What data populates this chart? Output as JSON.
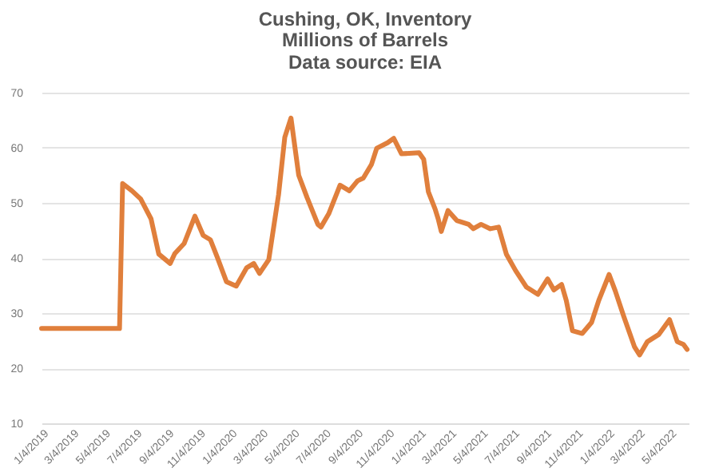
{
  "chart_data": {
    "type": "line",
    "title": "Cushing, OK, Inventory",
    "subtitle": "Millions of Barrels",
    "annotations": [
      "Data source: EIA"
    ],
    "x": [
      "2019-01-04",
      "2019-06-04",
      "2019-06-10",
      "2019-06-28",
      "2019-07-15",
      "2019-08-04",
      "2019-08-19",
      "2019-09-10",
      "2019-09-19",
      "2019-10-07",
      "2019-10-28",
      "2019-11-13",
      "2019-11-27",
      "2019-12-10",
      "2019-12-28",
      "2020-01-16",
      "2020-02-05",
      "2020-02-19",
      "2020-03-01",
      "2020-03-19",
      "2020-04-07",
      "2020-04-19",
      "2020-05-01",
      "2020-05-16",
      "2020-06-01",
      "2020-06-22",
      "2020-06-28",
      "2020-07-13",
      "2020-08-04",
      "2020-08-22",
      "2020-09-07",
      "2020-09-18",
      "2020-10-04",
      "2020-10-14",
      "2020-11-04",
      "2020-11-16",
      "2020-12-01",
      "2021-01-04",
      "2021-01-13",
      "2021-01-22",
      "2021-02-04",
      "2021-02-10",
      "2021-02-16",
      "2021-03-01",
      "2021-03-18",
      "2021-04-10",
      "2021-04-19",
      "2021-05-04",
      "2021-05-22",
      "2021-06-07",
      "2021-06-22",
      "2021-07-10",
      "2021-07-31",
      "2021-08-22",
      "2021-09-10",
      "2021-09-22",
      "2021-10-07",
      "2021-10-16",
      "2021-10-28",
      "2021-11-16",
      "2021-12-04",
      "2021-12-18",
      "2022-01-07",
      "2022-01-19",
      "2022-02-04",
      "2022-02-25",
      "2022-03-07",
      "2022-03-22",
      "2022-04-13",
      "2022-05-04",
      "2022-05-19",
      "2022-05-31",
      "2022-06-07"
    ],
    "series": [
      {
        "color": "#e07f3c",
        "values": [
          27.2,
          27.2,
          53.5,
          52.2,
          50.7,
          47.1,
          40.7,
          39,
          40.8,
          42.6,
          47.6,
          44.1,
          43.3,
          40.2,
          35.7,
          34.9,
          38.2,
          39,
          37.2,
          39.7,
          51.5,
          61.9,
          65.4,
          55,
          51,
          46.1,
          45.6,
          48,
          53.2,
          52.2,
          54,
          54.5,
          57,
          59.9,
          60.9,
          61.7,
          58.9,
          59.1,
          57.9,
          52,
          48.9,
          47.1,
          44.8,
          48.6,
          46.8,
          46.1,
          45.3,
          46.1,
          45.3,
          45.6,
          40.7,
          37.7,
          34.7,
          33.4,
          36.2,
          34.2,
          35.2,
          32.3,
          26.8,
          26.3,
          28.3,
          32.3,
          37,
          34,
          29.5,
          23.9,
          22.4,
          24.8,
          26.1,
          28.8,
          24.8,
          24.3,
          23.4
        ]
      }
    ],
    "xlim": [
      "2019-01-04",
      "2022-06-10"
    ],
    "xticks": [
      {
        "value": "2019-01-04",
        "label": "1/4/2019"
      },
      {
        "value": "2019-03-04",
        "label": "3/4/2019"
      },
      {
        "value": "2019-05-04",
        "label": "5/4/2019"
      },
      {
        "value": "2019-07-04",
        "label": "7/4/2019"
      },
      {
        "value": "2019-09-04",
        "label": "9/4/2019"
      },
      {
        "value": "2019-11-04",
        "label": "11/4/2019"
      },
      {
        "value": "2020-01-04",
        "label": "1/4/2020"
      },
      {
        "value": "2020-03-04",
        "label": "3/4/2020"
      },
      {
        "value": "2020-05-04",
        "label": "5/4/2020"
      },
      {
        "value": "2020-07-04",
        "label": "7/4/2020"
      },
      {
        "value": "2020-09-04",
        "label": "9/4/2020"
      },
      {
        "value": "2020-11-04",
        "label": "11/4/2020"
      },
      {
        "value": "2021-01-04",
        "label": "1/4/2021"
      },
      {
        "value": "2021-03-04",
        "label": "3/4/2021"
      },
      {
        "value": "2021-05-04",
        "label": "5/4/2021"
      },
      {
        "value": "2021-07-04",
        "label": "7/4/2021"
      },
      {
        "value": "2021-09-04",
        "label": "9/4/2021"
      },
      {
        "value": "2021-11-04",
        "label": "11/4/2021"
      },
      {
        "value": "2022-01-04",
        "label": "1/4/2022"
      },
      {
        "value": "2022-03-04",
        "label": "3/4/2022"
      },
      {
        "value": "2022-05-04",
        "label": "5/4/2022"
      }
    ],
    "ylim": [
      10,
      70
    ],
    "yticks": [
      10,
      20,
      30,
      40,
      50,
      60,
      70
    ],
    "grid": "y",
    "legend": false,
    "line_style": "solid",
    "marker": "none"
  }
}
